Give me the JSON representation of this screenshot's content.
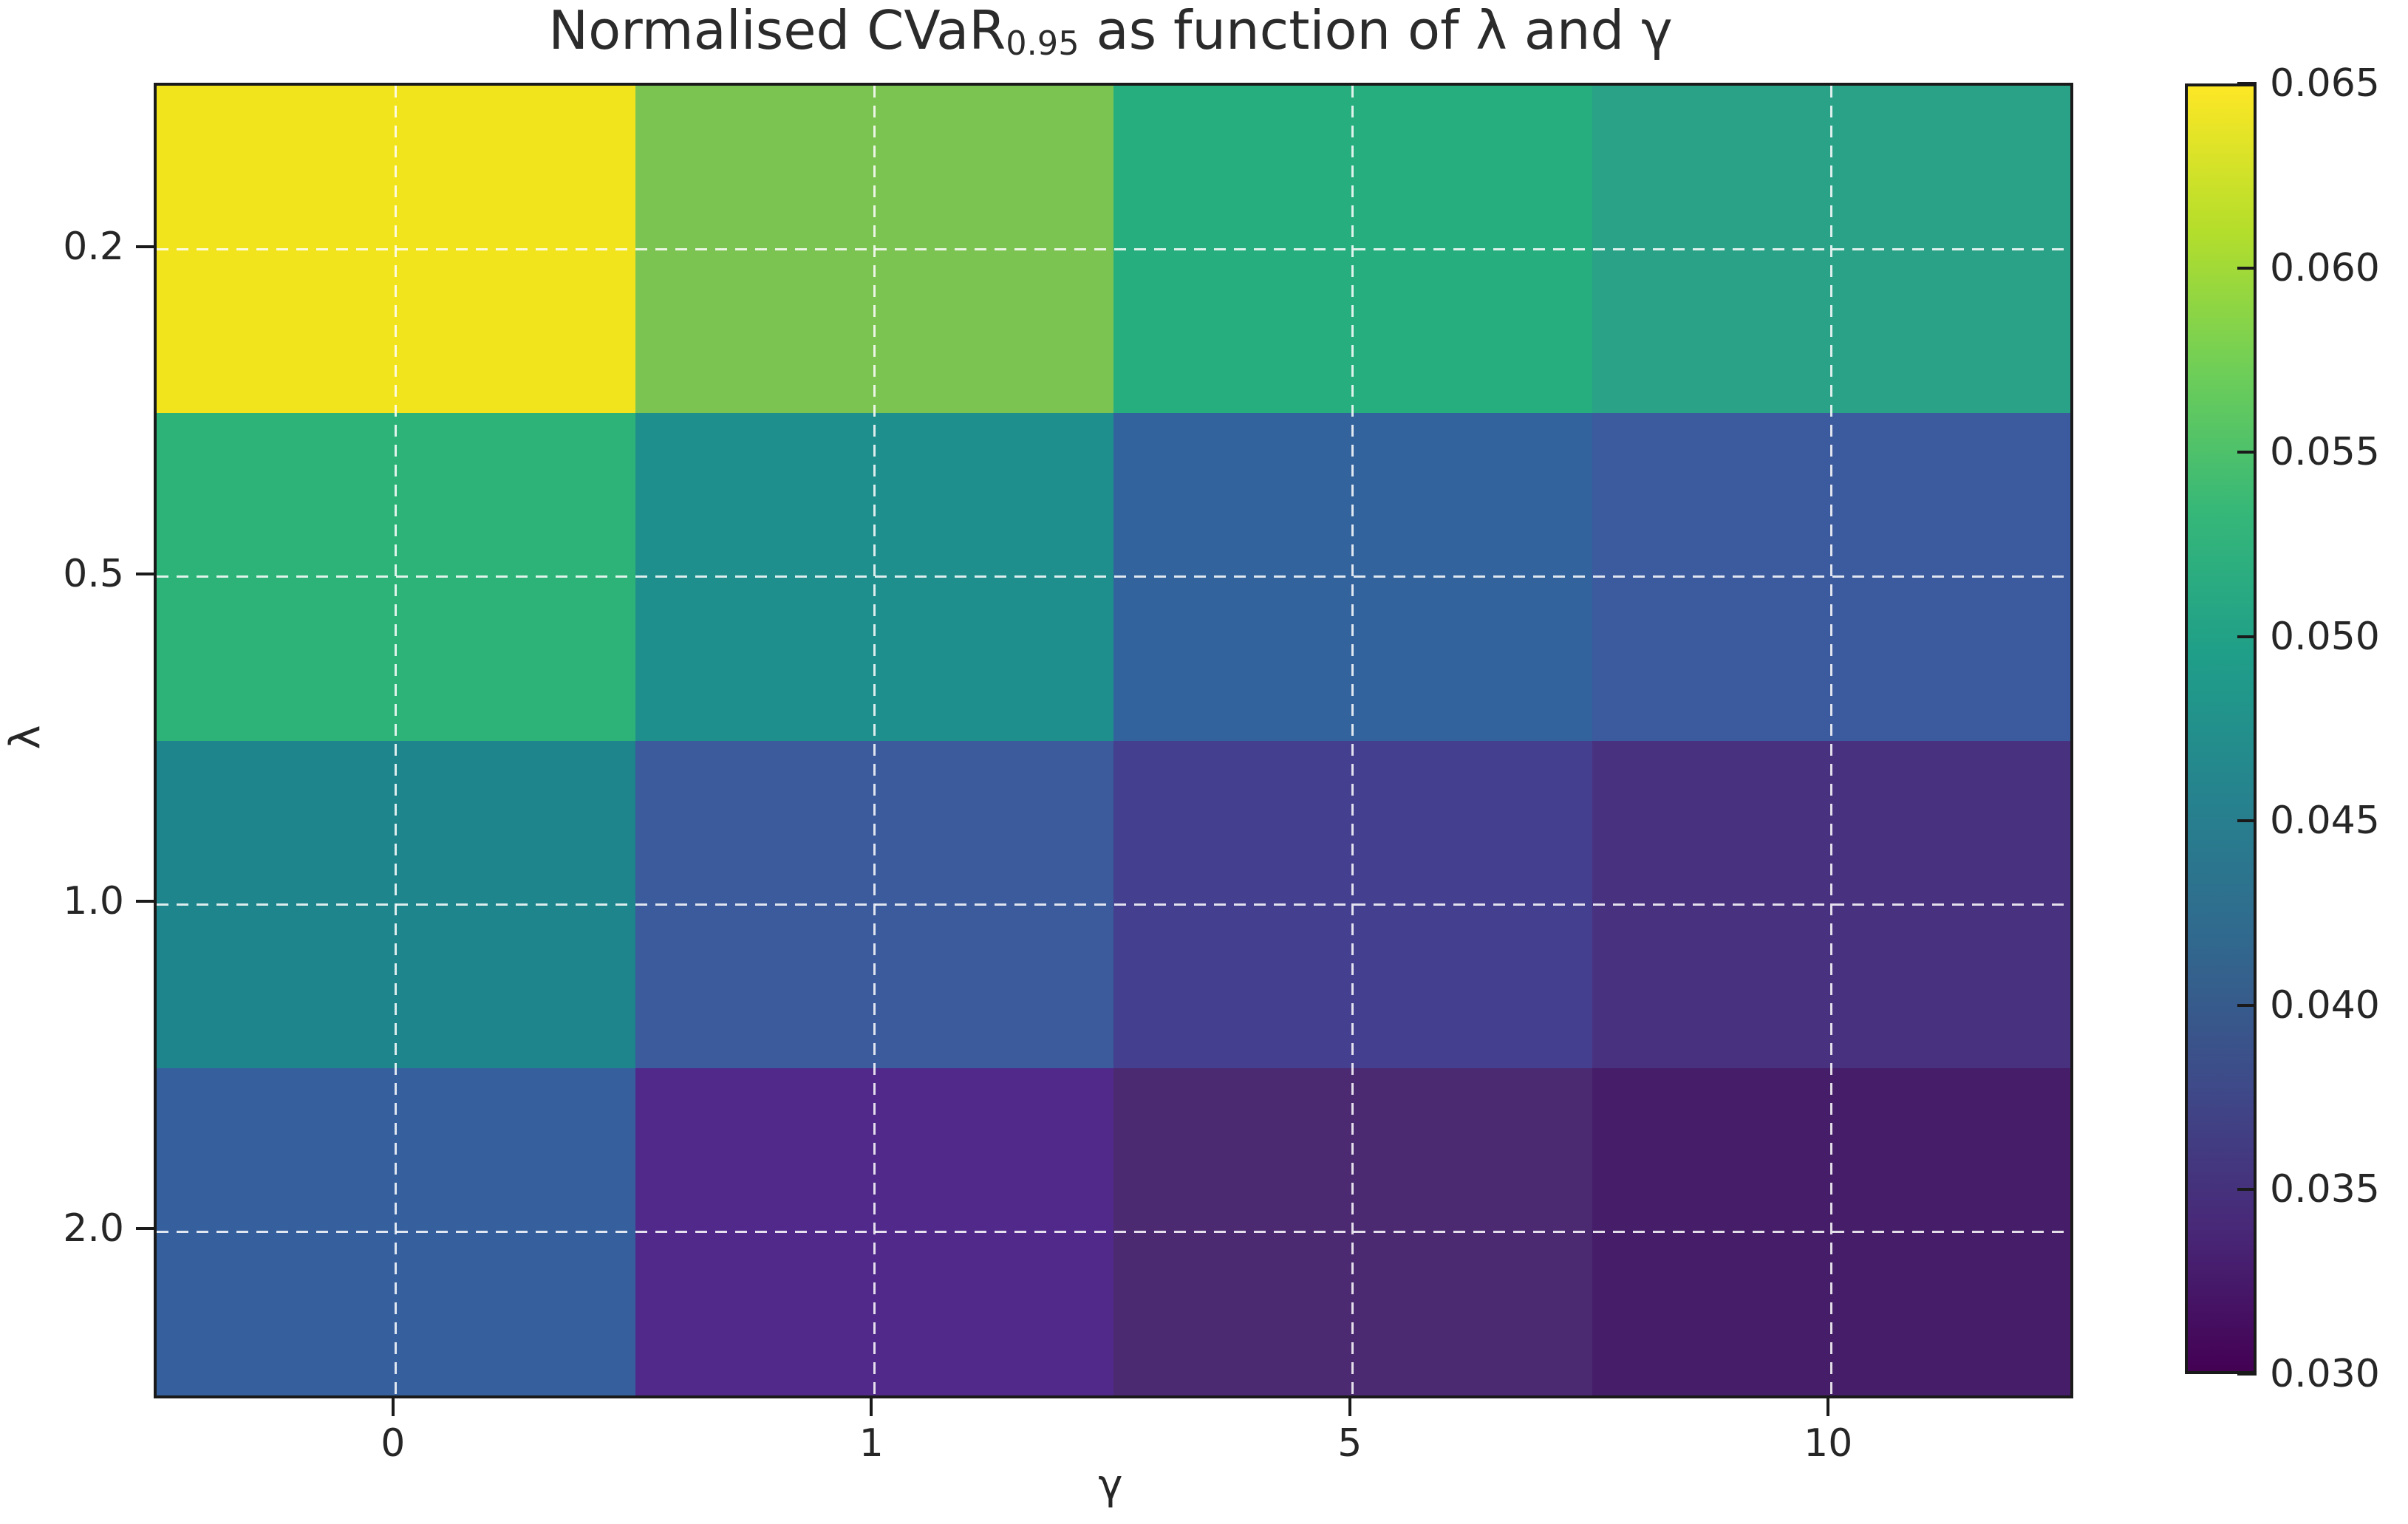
{
  "title": {
    "prefix": "Normalised CVaR",
    "subscript": "0.95",
    "suffix": " as function of λ and γ"
  },
  "x_axis": {
    "label": "γ",
    "ticks": [
      "0",
      "1",
      "5",
      "10"
    ]
  },
  "y_axis": {
    "label": "λ",
    "ticks": [
      "0.2",
      "0.5",
      "1.0",
      "2.0"
    ]
  },
  "colorbar": {
    "ticks": [
      "0.065",
      "0.060",
      "0.055",
      "0.050",
      "0.045",
      "0.040",
      "0.035",
      "0.030"
    ],
    "vmin": 0.03,
    "vmax": 0.065,
    "colormap": "viridis",
    "gradient_stops_bottom_to_top": [
      "#440154",
      "#482878",
      "#3e4a89",
      "#31688e",
      "#26828e",
      "#1f9e89",
      "#35b779",
      "#6ece58",
      "#b5de2b",
      "#fde725"
    ]
  },
  "chart_data": {
    "type": "heatmap",
    "title": "Normalised CVaR₀.₉₅ as function of λ and γ",
    "xlabel": "γ",
    "ylabel": "λ",
    "x": [
      0,
      1,
      5,
      10
    ],
    "y": [
      0.2,
      0.5,
      1.0,
      2.0
    ],
    "values": [
      [
        0.065,
        0.057,
        0.051,
        0.05
      ],
      [
        0.052,
        0.047,
        0.041,
        0.039
      ],
      [
        0.045,
        0.039,
        0.036,
        0.034
      ],
      [
        0.04,
        0.033,
        0.032,
        0.031
      ]
    ],
    "cell_colors": [
      [
        "#f2e41c",
        "#7cc452",
        "#26ae7e",
        "#29a287"
      ],
      [
        "#2db378",
        "#1f8f8d",
        "#33639c",
        "#3c5a9e"
      ],
      [
        "#1f858c",
        "#3b5b9c",
        "#44408f",
        "#48317f"
      ],
      [
        "#35609d",
        "#50298a",
        "#4b2a72",
        "#451d68"
      ]
    ],
    "value_range": [
      0.03,
      0.065
    ],
    "grid": "white dashed gridlines at tick positions",
    "legend_position": "colorbar right"
  }
}
